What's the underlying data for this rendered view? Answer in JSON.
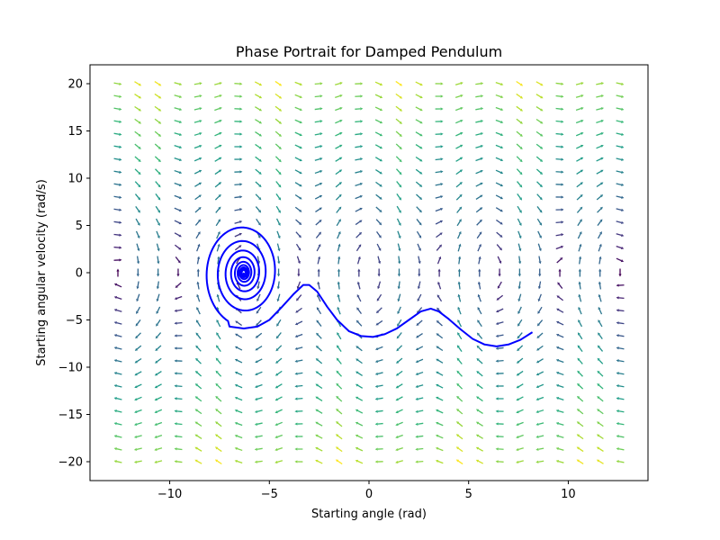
{
  "chart_data": {
    "type": "quiver",
    "title": "Phase Portrait for Damped Pendulum",
    "xlabel": "Starting angle (rad)",
    "ylabel": "Starting angular velocity (rad/s)",
    "xlim": [
      -14,
      14
    ],
    "ylim": [
      -22,
      22
    ],
    "x_ticks": [
      -10,
      -5,
      0,
      5,
      10
    ],
    "y_ticks": [
      -20,
      -15,
      -10,
      -5,
      0,
      5,
      10,
      15,
      20
    ],
    "grid": false,
    "vector_field": {
      "theta_range": [
        -12.6,
        12.6
      ],
      "theta_count": 26,
      "omega_range": [
        -20,
        20
      ],
      "omega_count": 31,
      "damping": 0.2,
      "gravity_over_length": 9.81,
      "arrow_color": "magnitude-normalized",
      "colormap": "viridis"
    },
    "trajectory": {
      "color": "#0000ff",
      "start": [
        8.2,
        -6.3
      ],
      "end": [
        -6.28,
        0
      ],
      "spiral_center": [
        -6.28,
        0
      ],
      "outer_loop_amplitude": [
        2.0,
        5.6
      ],
      "points": [
        [
          8.2,
          -6.3
        ],
        [
          7.6,
          -7.1
        ],
        [
          7.0,
          -7.6
        ],
        [
          6.4,
          -7.8
        ],
        [
          5.8,
          -7.6
        ],
        [
          5.2,
          -7.0
        ],
        [
          4.6,
          -6.0
        ],
        [
          4.0,
          -4.9
        ],
        [
          3.5,
          -4.1
        ],
        [
          3.1,
          -3.8
        ],
        [
          2.6,
          -4.1
        ],
        [
          2.0,
          -5.0
        ],
        [
          1.4,
          -5.9
        ],
        [
          0.8,
          -6.5
        ],
        [
          0.2,
          -6.8
        ],
        [
          -0.4,
          -6.7
        ],
        [
          -1.0,
          -6.2
        ],
        [
          -1.6,
          -5.0
        ],
        [
          -2.1,
          -3.6
        ],
        [
          -2.6,
          -2.0
        ],
        [
          -3.0,
          -1.3
        ],
        [
          -3.3,
          -1.3
        ],
        [
          -3.8,
          -2.3
        ],
        [
          -4.4,
          -3.7
        ],
        [
          -5.0,
          -5.0
        ],
        [
          -5.6,
          -5.7
        ],
        [
          -6.28,
          -5.9
        ],
        [
          -7.0,
          -5.7
        ]
      ]
    }
  }
}
